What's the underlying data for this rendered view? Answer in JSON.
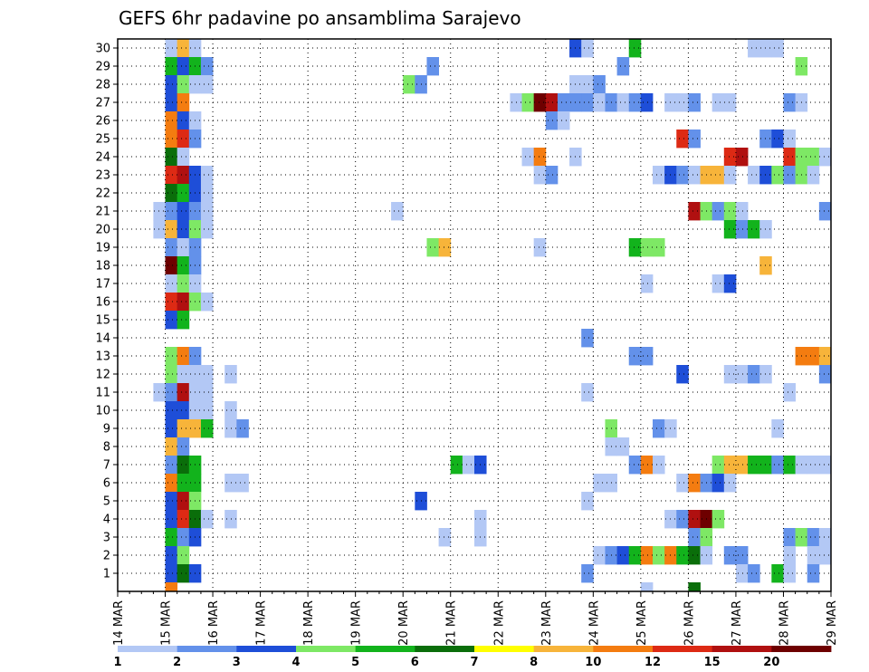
{
  "chart_data": {
    "type": "heatmap",
    "title": "GEFS 6hr padavine po ansamblima Sarajevo",
    "xlabel": "",
    "ylabel": "",
    "x_tick_labels": [
      "14 MAR",
      "15 MAR",
      "16 MAR",
      "17 MAR",
      "18 MAR",
      "19 MAR",
      "20 MAR",
      "21 MAR",
      "22 MAR",
      "23 MAR",
      "24 MAR",
      "25 MAR",
      "26 MAR",
      "27 MAR",
      "28 MAR",
      "29 MAR"
    ],
    "x_tick_values": [
      0,
      4,
      8,
      12,
      16,
      20,
      24,
      28,
      32,
      36,
      40,
      44,
      48,
      52,
      56,
      60
    ],
    "xlim": [
      0,
      60
    ],
    "x_step": "6hr",
    "y_tick_labels": [
      "1",
      "2",
      "3",
      "4",
      "5",
      "6",
      "7",
      "8",
      "9",
      "10",
      "11",
      "12",
      "13",
      "14",
      "15",
      "16",
      "17",
      "18",
      "19",
      "20",
      "21",
      "22",
      "23",
      "24",
      "25",
      "26",
      "27",
      "28",
      "29",
      "30"
    ],
    "ylim": [
      0,
      30
    ],
    "grid": true,
    "legend": {
      "position": "bottom",
      "labels": [
        "1",
        "2",
        "3",
        "4",
        "5",
        "6",
        "7",
        "8",
        "10",
        "12",
        "15",
        "20"
      ],
      "colors": [
        "#b3c8f5",
        "#6391ea",
        "#1e4ed8",
        "#7ee865",
        "#12b31c",
        "#0a6e0a",
        "#ffff00",
        "#f7b43a",
        "#f47c10",
        "#dd2a14",
        "#b01010",
        "#6e0000"
      ]
    },
    "cells": [
      {
        "m": 30,
        "v": [
          [
            4,
            1
          ],
          [
            5,
            8
          ],
          [
            6,
            1
          ],
          [
            38,
            3
          ],
          [
            39,
            1
          ],
          [
            43,
            5
          ],
          [
            53,
            1
          ],
          [
            54,
            1
          ],
          [
            55,
            1
          ]
        ]
      },
      {
        "m": 29,
        "v": [
          [
            4,
            5
          ],
          [
            5,
            3
          ],
          [
            6,
            5
          ],
          [
            7,
            2
          ],
          [
            26,
            2
          ],
          [
            42,
            2
          ],
          [
            57,
            4
          ]
        ]
      },
      {
        "m": 28,
        "v": [
          [
            4,
            3
          ],
          [
            5,
            4
          ],
          [
            6,
            1
          ],
          [
            7,
            1
          ],
          [
            24,
            4
          ],
          [
            25,
            2
          ],
          [
            38,
            1
          ],
          [
            39,
            1
          ],
          [
            40,
            2
          ]
        ]
      },
      {
        "m": 27,
        "v": [
          [
            4,
            3
          ],
          [
            5,
            9
          ],
          [
            33,
            1
          ],
          [
            34,
            4
          ],
          [
            35,
            12
          ],
          [
            36,
            11
          ],
          [
            37,
            2
          ],
          [
            38,
            2
          ],
          [
            39,
            2
          ],
          [
            40,
            1
          ],
          [
            41,
            2
          ],
          [
            42,
            1
          ],
          [
            43,
            2
          ],
          [
            44,
            3
          ],
          [
            46,
            1
          ],
          [
            47,
            1
          ],
          [
            48,
            2
          ],
          [
            50,
            1
          ],
          [
            51,
            1
          ],
          [
            56,
            2
          ],
          [
            57,
            1
          ]
        ]
      },
      {
        "m": 26,
        "v": [
          [
            4,
            9
          ],
          [
            5,
            3
          ],
          [
            6,
            1
          ],
          [
            36,
            2
          ],
          [
            37,
            1
          ]
        ]
      },
      {
        "m": 25,
        "v": [
          [
            4,
            9
          ],
          [
            5,
            10
          ],
          [
            6,
            2
          ],
          [
            47,
            10
          ],
          [
            48,
            2
          ],
          [
            54,
            2
          ],
          [
            55,
            3
          ],
          [
            56,
            1
          ]
        ]
      },
      {
        "m": 24,
        "v": [
          [
            4,
            6
          ],
          [
            5,
            1
          ],
          [
            34,
            1
          ],
          [
            35,
            9
          ],
          [
            38,
            1
          ],
          [
            51,
            10
          ],
          [
            52,
            11
          ],
          [
            56,
            10
          ],
          [
            57,
            4
          ],
          [
            58,
            4
          ],
          [
            59,
            1
          ]
        ]
      },
      {
        "m": 23,
        "v": [
          [
            4,
            10
          ],
          [
            5,
            11
          ],
          [
            6,
            3
          ],
          [
            7,
            1
          ],
          [
            35,
            1
          ],
          [
            36,
            2
          ],
          [
            45,
            1
          ],
          [
            46,
            3
          ],
          [
            47,
            2
          ],
          [
            48,
            1
          ],
          [
            49,
            8
          ],
          [
            50,
            8
          ],
          [
            51,
            1
          ],
          [
            53,
            1
          ],
          [
            54,
            3
          ],
          [
            55,
            4
          ],
          [
            56,
            2
          ],
          [
            57,
            4
          ],
          [
            58,
            1
          ]
        ]
      },
      {
        "m": 22,
        "v": [
          [
            4,
            6
          ],
          [
            5,
            5
          ],
          [
            6,
            3
          ],
          [
            7,
            1
          ]
        ]
      },
      {
        "m": 21,
        "v": [
          [
            3,
            1
          ],
          [
            4,
            2
          ],
          [
            5,
            3
          ],
          [
            6,
            2
          ],
          [
            7,
            1
          ],
          [
            23,
            1
          ],
          [
            48,
            11
          ],
          [
            49,
            4
          ],
          [
            50,
            2
          ],
          [
            51,
            4
          ],
          [
            52,
            1
          ],
          [
            59,
            2
          ]
        ]
      },
      {
        "m": 20,
        "v": [
          [
            3,
            1
          ],
          [
            4,
            8
          ],
          [
            5,
            3
          ],
          [
            6,
            4
          ],
          [
            7,
            1
          ],
          [
            51,
            5
          ],
          [
            52,
            2
          ],
          [
            53,
            5
          ],
          [
            54,
            1
          ]
        ]
      },
      {
        "m": 19,
        "v": [
          [
            4,
            2
          ],
          [
            5,
            1
          ],
          [
            6,
            2
          ],
          [
            26,
            4
          ],
          [
            27,
            8
          ],
          [
            35,
            1
          ],
          [
            43,
            5
          ],
          [
            44,
            4
          ],
          [
            45,
            4
          ]
        ]
      },
      {
        "m": 18,
        "v": [
          [
            4,
            12
          ],
          [
            5,
            5
          ],
          [
            6,
            2
          ],
          [
            54,
            8
          ]
        ]
      },
      {
        "m": 17,
        "v": [
          [
            4,
            1
          ],
          [
            5,
            4
          ],
          [
            6,
            1
          ],
          [
            44,
            1
          ],
          [
            50,
            1
          ],
          [
            51,
            3
          ]
        ]
      },
      {
        "m": 16,
        "v": [
          [
            4,
            10
          ],
          [
            5,
            11
          ],
          [
            6,
            4
          ],
          [
            7,
            1
          ]
        ]
      },
      {
        "m": 15,
        "v": [
          [
            4,
            3
          ],
          [
            5,
            5
          ]
        ]
      },
      {
        "m": 14,
        "v": [
          [
            39,
            2
          ]
        ]
      },
      {
        "m": 13,
        "v": [
          [
            4,
            4
          ],
          [
            5,
            9
          ],
          [
            6,
            2
          ],
          [
            43,
            2
          ],
          [
            44,
            2
          ],
          [
            57,
            9
          ],
          [
            58,
            9
          ],
          [
            59,
            8
          ],
          [
            60,
            12
          ]
        ]
      },
      {
        "m": 12,
        "v": [
          [
            4,
            4
          ],
          [
            5,
            1
          ],
          [
            6,
            1
          ],
          [
            7,
            1
          ],
          [
            9,
            1
          ],
          [
            47,
            3
          ],
          [
            51,
            1
          ],
          [
            52,
            1
          ],
          [
            53,
            2
          ],
          [
            54,
            1
          ],
          [
            59,
            2
          ],
          [
            60,
            1
          ]
        ]
      },
      {
        "m": 11,
        "v": [
          [
            3,
            1
          ],
          [
            4,
            2
          ],
          [
            5,
            11
          ],
          [
            6,
            1
          ],
          [
            7,
            1
          ],
          [
            39,
            1
          ],
          [
            56,
            1
          ]
        ]
      },
      {
        "m": 10,
        "v": [
          [
            4,
            3
          ],
          [
            5,
            3
          ],
          [
            6,
            1
          ],
          [
            7,
            1
          ],
          [
            9,
            1
          ]
        ]
      },
      {
        "m": 9,
        "v": [
          [
            4,
            3
          ],
          [
            5,
            8
          ],
          [
            6,
            8
          ],
          [
            7,
            5
          ],
          [
            9,
            1
          ],
          [
            10,
            2
          ],
          [
            41,
            4
          ],
          [
            45,
            2
          ],
          [
            46,
            1
          ],
          [
            55,
            1
          ]
        ]
      },
      {
        "m": 8,
        "v": [
          [
            4,
            8
          ],
          [
            5,
            2
          ],
          [
            41,
            1
          ],
          [
            42,
            1
          ]
        ]
      },
      {
        "m": 7,
        "v": [
          [
            4,
            2
          ],
          [
            5,
            6
          ],
          [
            6,
            5
          ],
          [
            28,
            5
          ],
          [
            29,
            1
          ],
          [
            30,
            3
          ],
          [
            43,
            2
          ],
          [
            44,
            9
          ],
          [
            45,
            1
          ],
          [
            50,
            4
          ],
          [
            51,
            8
          ],
          [
            52,
            8
          ],
          [
            53,
            5
          ],
          [
            54,
            5
          ],
          [
            55,
            2
          ],
          [
            56,
            5
          ],
          [
            57,
            1
          ],
          [
            58,
            1
          ],
          [
            59,
            1
          ],
          [
            60,
            1
          ]
        ]
      },
      {
        "m": 6,
        "v": [
          [
            4,
            9
          ],
          [
            5,
            5
          ],
          [
            6,
            5
          ],
          [
            9,
            1
          ],
          [
            10,
            1
          ],
          [
            40,
            1
          ],
          [
            41,
            1
          ],
          [
            47,
            1
          ],
          [
            48,
            9
          ],
          [
            49,
            2
          ],
          [
            50,
            3
          ],
          [
            51,
            1
          ]
        ]
      },
      {
        "m": 5,
        "v": [
          [
            4,
            3
          ],
          [
            5,
            11
          ],
          [
            6,
            4
          ],
          [
            25,
            3
          ],
          [
            39,
            1
          ]
        ]
      },
      {
        "m": 4,
        "v": [
          [
            4,
            3
          ],
          [
            5,
            10
          ],
          [
            6,
            6
          ],
          [
            7,
            1
          ],
          [
            9,
            1
          ],
          [
            30,
            1
          ],
          [
            46,
            1
          ],
          [
            47,
            2
          ],
          [
            48,
            11
          ],
          [
            49,
            12
          ],
          [
            50,
            4
          ]
        ]
      },
      {
        "m": 3,
        "v": [
          [
            4,
            5
          ],
          [
            5,
            2
          ],
          [
            6,
            3
          ],
          [
            27,
            1
          ],
          [
            30,
            1
          ],
          [
            48,
            2
          ],
          [
            49,
            4
          ],
          [
            56,
            2
          ],
          [
            57,
            4
          ],
          [
            58,
            2
          ],
          [
            59,
            1
          ]
        ]
      },
      {
        "m": 2,
        "v": [
          [
            4,
            3
          ],
          [
            5,
            4
          ],
          [
            40,
            1
          ],
          [
            41,
            2
          ],
          [
            42,
            3
          ],
          [
            43,
            5
          ],
          [
            44,
            9
          ],
          [
            45,
            4
          ],
          [
            46,
            9
          ],
          [
            47,
            5
          ],
          [
            48,
            6
          ],
          [
            49,
            1
          ],
          [
            51,
            2
          ],
          [
            52,
            2
          ],
          [
            56,
            1
          ],
          [
            58,
            1
          ],
          [
            59,
            1
          ]
        ]
      },
      {
        "m": 1,
        "v": [
          [
            4,
            3
          ],
          [
            5,
            6
          ],
          [
            6,
            3
          ],
          [
            39,
            2
          ],
          [
            52,
            1
          ],
          [
            53,
            2
          ],
          [
            55,
            5
          ],
          [
            56,
            1
          ],
          [
            58,
            2
          ]
        ]
      },
      {
        "m": 0,
        "v": [
          [
            4,
            9
          ],
          [
            44,
            1
          ],
          [
            48,
            6
          ]
        ]
      }
    ]
  }
}
